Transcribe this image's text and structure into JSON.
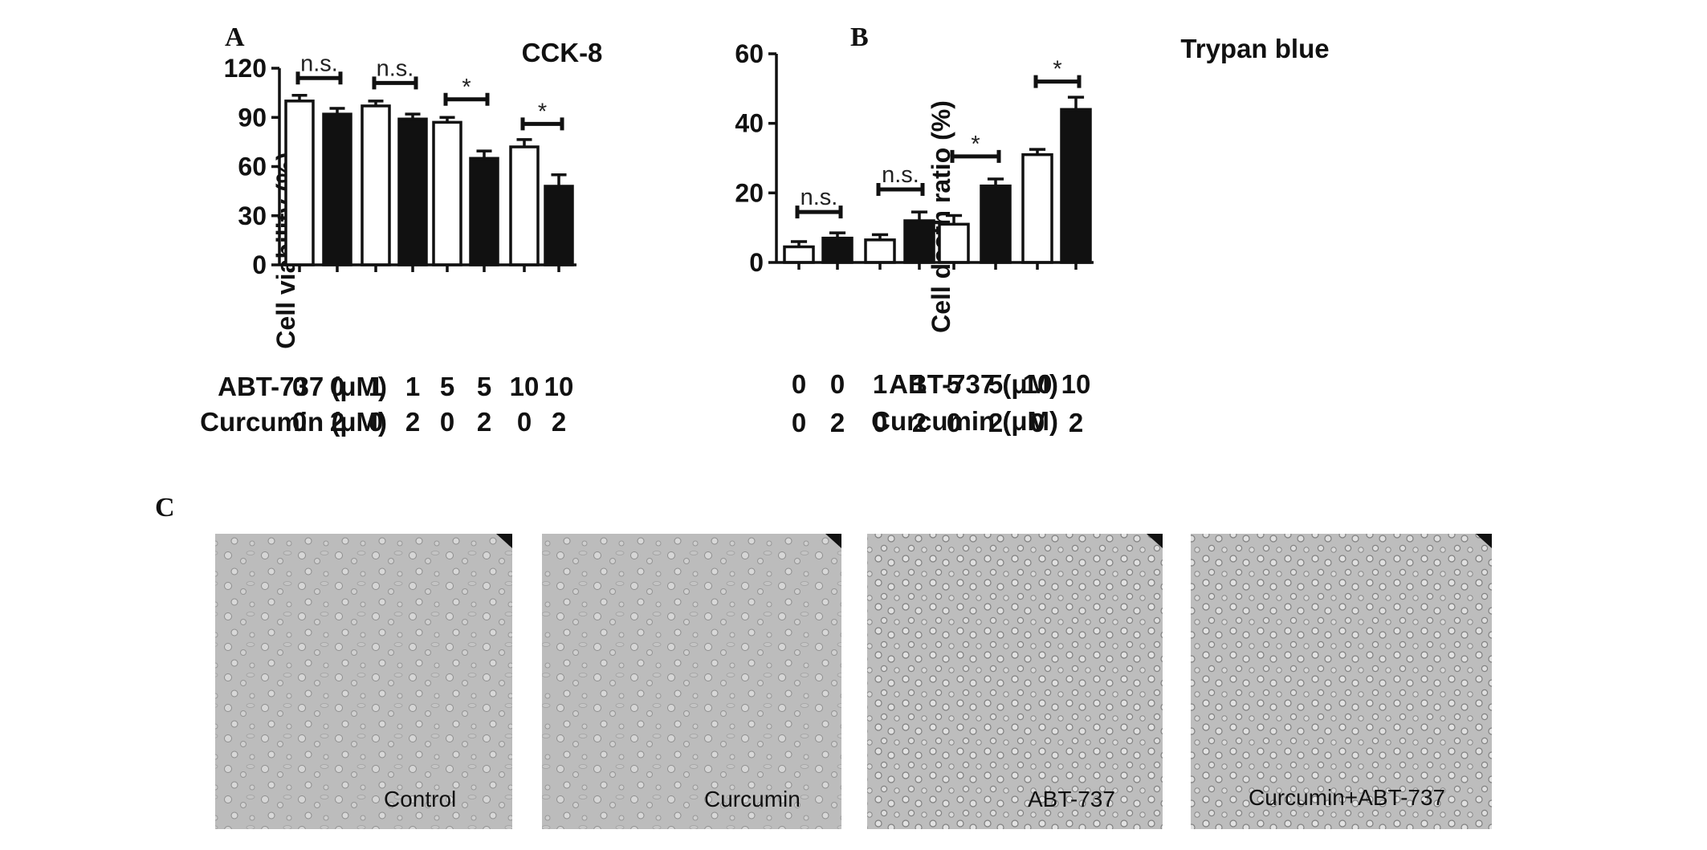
{
  "panels": {
    "A": "A",
    "B": "B",
    "C": "C"
  },
  "row_labels": {
    "abt737": "ABT-737 (μM)",
    "curcumin": "Curcumin (μM)"
  },
  "colors": {
    "fill_white": "#ffffff",
    "fill_black": "#111111",
    "stroke": "#111111",
    "micro_bg": "#b9b9b9"
  },
  "chart_data": [
    {
      "type": "bar",
      "panel": "A",
      "title": "CCK-8",
      "ylabel": "Cell viability (%)",
      "xlabel": "",
      "ylim": [
        0,
        120
      ],
      "yticks": [
        0,
        30,
        60,
        90,
        120
      ],
      "grid": false,
      "legend": "none",
      "abt737": [
        "0",
        "0",
        "1",
        "1",
        "5",
        "5",
        "10",
        "10"
      ],
      "curcumin": [
        "0",
        "2",
        "0",
        "2",
        "0",
        "2",
        "0",
        "2"
      ],
      "fill": [
        "white",
        "black",
        "white",
        "black",
        "white",
        "black",
        "white",
        "black"
      ],
      "values": [
        100,
        92,
        97,
        89,
        87,
        65,
        72,
        48
      ],
      "errors": [
        3.5,
        3.5,
        3,
        3,
        3,
        4.5,
        4.5,
        7
      ],
      "significance": [
        {
          "pair": [
            0,
            1
          ],
          "label": "n.s.",
          "level": 114
        },
        {
          "pair": [
            2,
            3
          ],
          "label": "n.s.",
          "level": 111
        },
        {
          "pair": [
            4,
            5
          ],
          "label": "*",
          "level": 101
        },
        {
          "pair": [
            6,
            7
          ],
          "label": "*",
          "level": 86
        }
      ]
    },
    {
      "type": "bar",
      "panel": "B",
      "title": "Trypan blue",
      "ylabel": "Cell death ratio (%)",
      "xlabel": "",
      "ylim": [
        0,
        60
      ],
      "yticks": [
        0,
        20,
        40,
        60
      ],
      "grid": false,
      "legend": "none",
      "abt737": [
        "0",
        "0",
        "1",
        "1",
        "5",
        "5",
        "10",
        "10"
      ],
      "curcumin": [
        "0",
        "2",
        "0",
        "2",
        "0",
        "2",
        "0",
        "2"
      ],
      "fill": [
        "white",
        "black",
        "white",
        "black",
        "white",
        "black",
        "white",
        "black"
      ],
      "values": [
        4.5,
        7,
        6.5,
        12,
        11,
        22,
        31,
        44
      ],
      "errors": [
        1.5,
        1.5,
        1.5,
        2.5,
        2.5,
        2,
        1.5,
        3.5
      ],
      "significance": [
        {
          "pair": [
            0,
            1
          ],
          "label": "n.s.",
          "level": 14.5
        },
        {
          "pair": [
            2,
            3
          ],
          "label": "n.s.",
          "level": 21
        },
        {
          "pair": [
            4,
            5
          ],
          "label": "*",
          "level": 30.5
        },
        {
          "pair": [
            6,
            7
          ],
          "label": "*",
          "level": 52
        }
      ]
    }
  ],
  "micrographs": [
    {
      "label": "Control"
    },
    {
      "label": "Curcumin"
    },
    {
      "label": "ABT-737"
    },
    {
      "label": "Curcumin+ABT-737"
    }
  ]
}
